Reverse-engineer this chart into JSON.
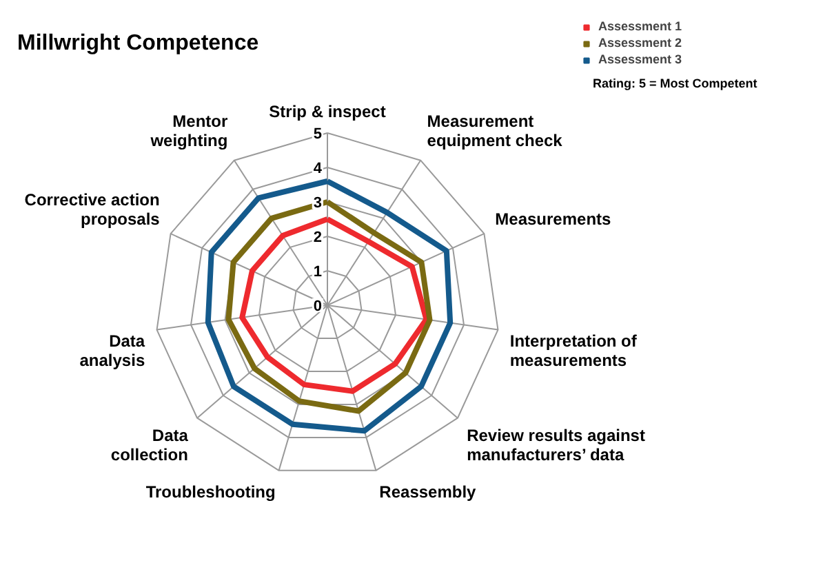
{
  "chart_data": {
    "type": "radar",
    "title": "Millwright Competence",
    "categories": [
      "Strip & inspect",
      "Measurement\nequipment check",
      "Measurements",
      "Interpretation of\nmeasurements",
      "Review results against\nmanufacturers’ data",
      "Reassembly",
      "Troubleshooting",
      "Data\ncollection",
      "Data\nanalysis",
      "Corrective action\nproposals",
      "Mentor\nweighting"
    ],
    "series": [
      {
        "name": "Assessment 1",
        "color": "#ee2a2e",
        "values": [
          2.5,
          2.2,
          2.7,
          2.9,
          2.6,
          2.6,
          2.4,
          2.3,
          2.5,
          2.4,
          2.4
        ]
      },
      {
        "name": "Assessment 2",
        "color": "#7a6a12",
        "values": [
          3.0,
          2.5,
          3.0,
          3.0,
          3.0,
          3.2,
          2.9,
          2.8,
          2.9,
          3.0,
          3.0
        ]
      },
      {
        "name": "Assessment 3",
        "color": "#145a8c",
        "values": [
          3.6,
          3.2,
          3.8,
          3.6,
          3.6,
          3.8,
          3.6,
          3.6,
          3.5,
          3.7,
          3.7
        ]
      }
    ],
    "ylim": [
      0,
      5
    ],
    "yticks": [
      0,
      1,
      2,
      3,
      4,
      5
    ],
    "grid": true,
    "legend": "top right",
    "annotations": [
      "Rating: 5 = Most Competent"
    ]
  }
}
